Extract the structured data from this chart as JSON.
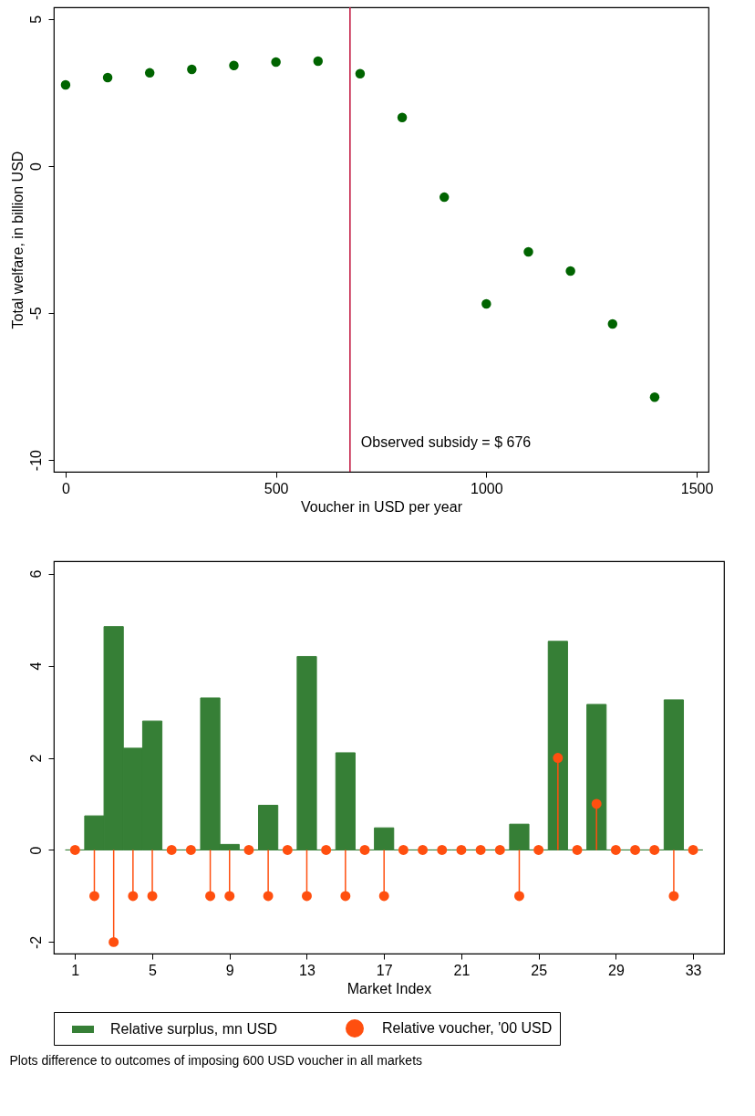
{
  "chart_data": [
    {
      "type": "scatter",
      "xlabel": "Voucher in USD per year",
      "ylabel": "Total welfare, in billion USD",
      "x": [
        0,
        100,
        200,
        300,
        400,
        500,
        600,
        700,
        800,
        900,
        1000,
        1100,
        1200,
        1300,
        1400
      ],
      "values": [
        2.76,
        3.01,
        3.17,
        3.29,
        3.42,
        3.54,
        3.57,
        3.14,
        1.65,
        -1.06,
        -4.69,
        -2.92,
        -3.57,
        -5.37,
        -7.86
      ],
      "color": "#006400",
      "marker": "circle",
      "xlim": [
        -28,
        1528
      ],
      "ylim": [
        -10.4,
        5.4
      ],
      "xticks": [
        0,
        500,
        1000,
        1500
      ],
      "yticks": [
        -10,
        -5,
        0,
        5
      ],
      "grid": false,
      "ref_lines": [
        {
          "axis": "x",
          "value": 676,
          "label": "Observed subsidy = $ 676",
          "color": "#c0103a"
        }
      ]
    },
    {
      "type": "bar",
      "xlabel": "Market Index",
      "x": [
        1,
        2,
        3,
        4,
        5,
        6,
        7,
        8,
        9,
        10,
        11,
        12,
        13,
        14,
        15,
        16,
        17,
        18,
        19,
        20,
        21,
        22,
        23,
        24,
        25,
        26,
        27,
        28,
        29,
        30,
        31,
        32,
        33
      ],
      "series": [
        {
          "name": "Relative surplus, mn USD",
          "type": "bar",
          "color": "#367f36",
          "values": [
            0,
            0.74,
            4.85,
            2.21,
            2.8,
            0,
            0,
            3.3,
            0.12,
            0,
            0.97,
            0,
            4.2,
            0,
            2.11,
            0,
            0.48,
            0,
            0,
            0,
            0,
            0,
            0,
            0.56,
            0,
            4.53,
            0,
            3.16,
            0,
            0,
            0,
            3.26,
            0
          ]
        },
        {
          "name": "Relative voucher, '00 USD",
          "type": "lollipop",
          "color": "#ff4f0f",
          "values": [
            0,
            -1,
            -2,
            -1,
            -1,
            0,
            0,
            -1,
            -1,
            0,
            -1,
            0,
            -1,
            0,
            -1,
            0,
            -1,
            0,
            0,
            0,
            0,
            0,
            0,
            -1,
            0,
            2,
            0,
            1,
            0,
            0,
            0,
            -1,
            0
          ]
        }
      ],
      "xlim": [
        -0.1,
        34.6
      ],
      "ylim": [
        -2.25,
        6.27
      ],
      "xticks": [
        1,
        5,
        9,
        13,
        17,
        21,
        25,
        29,
        33
      ],
      "yticks": [
        -2,
        0,
        2,
        4,
        6
      ],
      "grid": false,
      "legend": "bottom",
      "annotations": [
        "Plots difference to outcomes of imposing 600 USD voucher in all markets"
      ]
    }
  ]
}
